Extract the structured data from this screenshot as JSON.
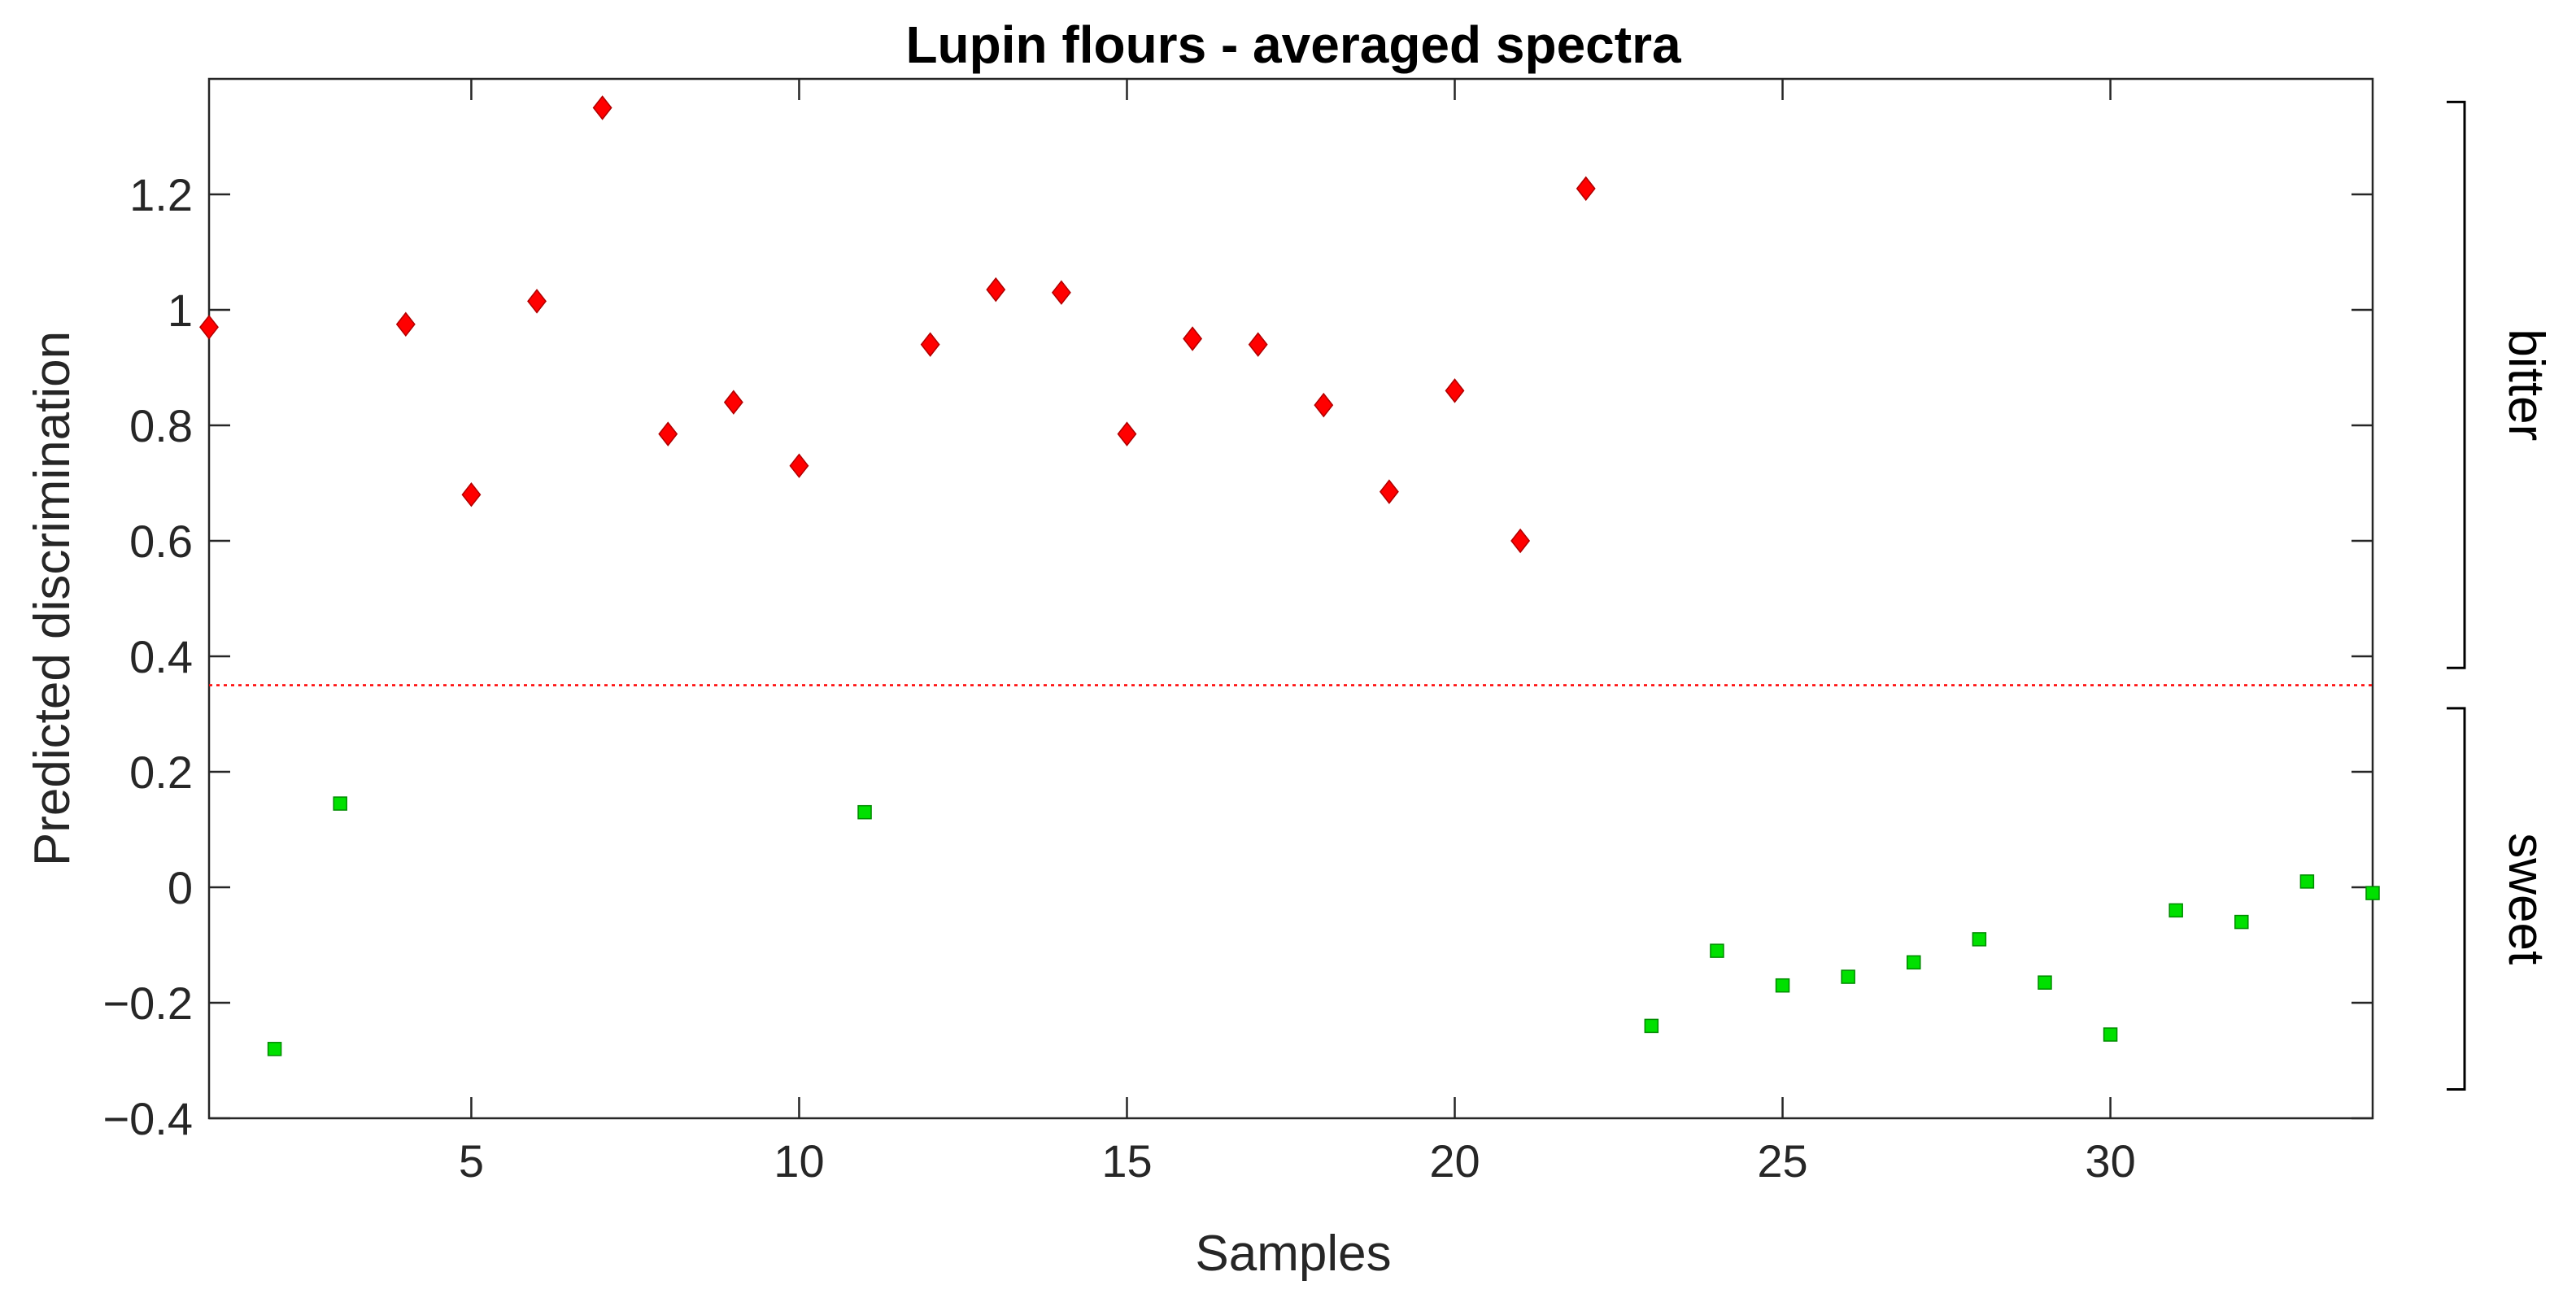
{
  "chart_data": {
    "type": "scatter",
    "title": "Lupin flours - averaged spectra",
    "xlabel": "Samples",
    "ylabel": "Predicted discrimination",
    "xlim": [
      1,
      34
    ],
    "ylim": [
      -0.4,
      1.4
    ],
    "xticks": [
      5,
      10,
      15,
      20,
      25,
      30
    ],
    "xtick_labels": [
      "5",
      "10",
      "15",
      "20",
      "25",
      "30"
    ],
    "yticks": [
      -0.4,
      -0.2,
      0,
      0.2,
      0.4,
      0.6,
      0.8,
      1,
      1.2
    ],
    "ytick_labels": [
      "−0.4",
      "−0.2",
      "0",
      "0.2",
      "0.4",
      "0.6",
      "0.8",
      "1",
      "1.2"
    ],
    "threshold": 0.35,
    "threshold_color": "#ff0000",
    "series": [
      {
        "marker": "diamond",
        "color": "#ff0000",
        "x": [
          1,
          4,
          5,
          6,
          7,
          8,
          9,
          10,
          12,
          13,
          14,
          15,
          16,
          17,
          18,
          19,
          20,
          21,
          22
        ],
        "y": [
          0.97,
          0.975,
          0.68,
          1.015,
          1.35,
          0.785,
          0.84,
          0.73,
          0.94,
          1.035,
          1.03,
          0.785,
          0.95,
          0.94,
          0.835,
          0.685,
          0.86,
          0.6,
          1.21
        ]
      },
      {
        "marker": "square",
        "color": "#00e000",
        "x": [
          2,
          3,
          11,
          23,
          24,
          25,
          26,
          27,
          28,
          29,
          30,
          31,
          32,
          33,
          34
        ],
        "y": [
          -0.28,
          0.145,
          0.13,
          -0.24,
          -0.11,
          -0.17,
          -0.155,
          -0.13,
          -0.09,
          -0.165,
          -0.255,
          -0.04,
          -0.06,
          0.01,
          -0.01
        ]
      }
    ],
    "groups": [
      {
        "label": "bitter",
        "range": [
          0.38,
          1.36
        ]
      },
      {
        "label": "sweet",
        "range": [
          -0.35,
          0.31
        ]
      }
    ]
  }
}
